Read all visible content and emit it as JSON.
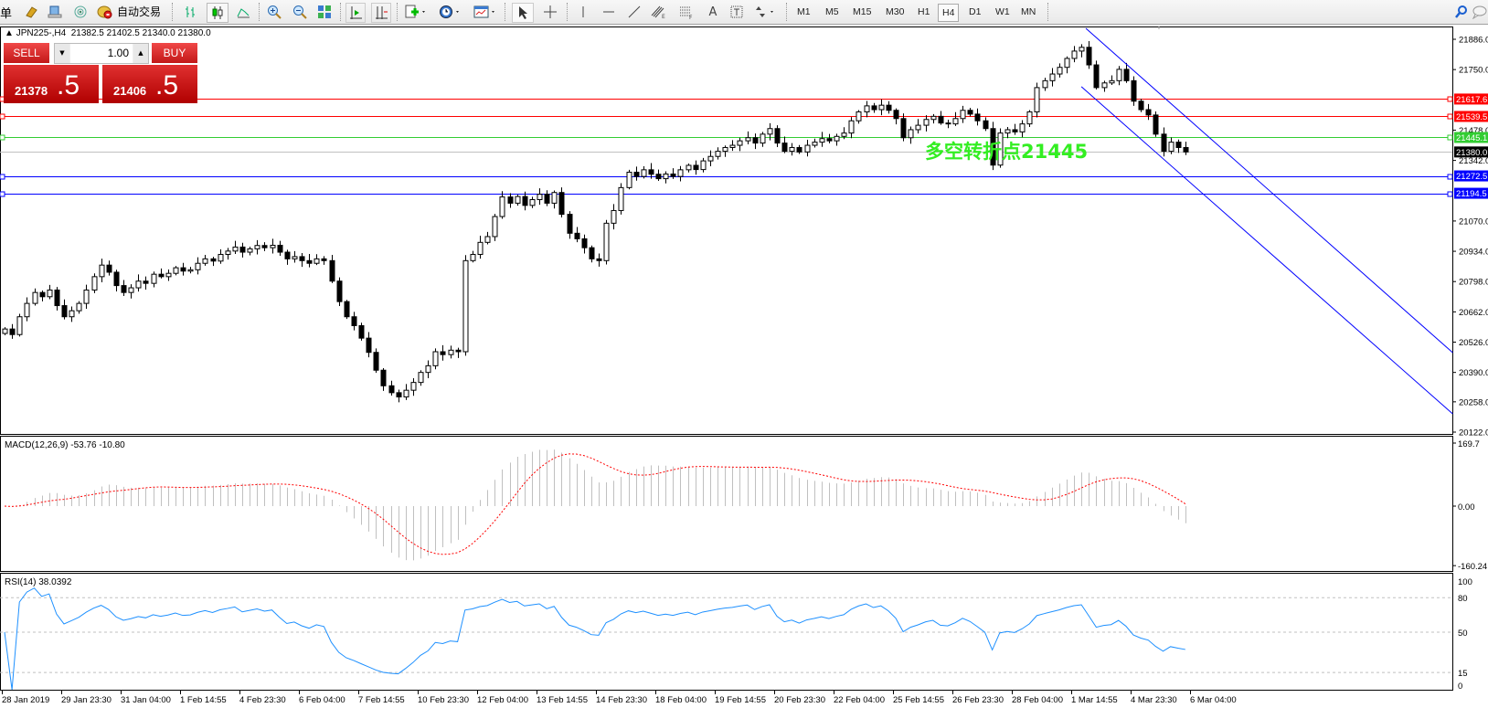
{
  "toolbar": {
    "cut_label": "单",
    "auto_trading_label": "自动交易",
    "timeframes": [
      "M1",
      "M5",
      "M15",
      "M30",
      "H1",
      "H4",
      "D1",
      "W1",
      "MN"
    ],
    "active_timeframe": "H4",
    "icons": [
      "orders-icon",
      "profile-icon",
      "market-watch-icon",
      "signals-icon",
      "auto-trading-icon",
      "bar-chart-icon",
      "candlestick-icon",
      "line-chart-icon",
      "zoom-in-icon",
      "zoom-out-icon",
      "tile-windows-icon",
      "autoscroll-icon",
      "chart-shift-icon",
      "indicators-icon",
      "periods-icon",
      "templates-icon",
      "cursor-icon",
      "crosshair-icon",
      "vertical-line-icon",
      "horizontal-line-icon",
      "trendline-icon",
      "equidistant-channel-icon",
      "fibonacci-icon",
      "text-icon",
      "text-label-icon",
      "arrows-icon",
      "search-icon",
      "chat-icon"
    ]
  },
  "header": {
    "symbol_text": "JPN225-,H4",
    "ohlc_text": "21382.5 21402.5 21340.0 21380.0"
  },
  "trade_panel": {
    "sell_label": "SELL",
    "buy_label": "BUY",
    "lot": "1.00",
    "sell_price_main": "21378",
    "sell_price_frac": ".5",
    "buy_price_main": "21406",
    "buy_price_frac": ".5"
  },
  "chart_data": {
    "type": "candlestick",
    "symbol": "JPN225-",
    "timeframe": "H4",
    "last_bar": {
      "open": 21382.5,
      "high": 21402.5,
      "low": 21340.0,
      "close": 21380.0
    },
    "price_axis": {
      "range": [
        20122,
        21886
      ],
      "ticks": [
        "21886.0",
        "21750.0",
        "21478.0",
        "21342.0",
        "21070.0",
        "20934.0",
        "20798.0",
        "20662.0",
        "20526.0",
        "20390.0",
        "20258.0",
        "20122.0"
      ]
    },
    "time_axis": {
      "labels": [
        "28 Jan 2019",
        "29 Jan 23:30",
        "31 Jan 04:00",
        "1 Feb 14:55",
        "4 Feb 23:30",
        "6 Feb 04:00",
        "7 Feb 14:55",
        "10 Feb 23:30",
        "12 Feb 04:00",
        "13 Feb 14:55",
        "14 Feb 23:30",
        "18 Feb 04:00",
        "19 Feb 14:55",
        "20 Feb 23:30",
        "22 Feb 04:00",
        "25 Feb 14:55",
        "26 Feb 23:30",
        "28 Feb 04:00",
        "1 Mar 14:55",
        "4 Mar 23:30",
        "6 Mar 04:00"
      ],
      "bars_per_label": 8
    },
    "closes": [
      20585,
      20560,
      20640,
      20700,
      20749,
      20730,
      20760,
      20690,
      20640,
      20667,
      20700,
      20760,
      20820,
      20872,
      20840,
      20780,
      20749,
      20770,
      20800,
      20790,
      20831,
      20820,
      20835,
      20860,
      20845,
      20851,
      20880,
      20900,
      20890,
      20920,
      20935,
      20953,
      20930,
      20945,
      20960,
      20950,
      20961,
      20930,
      20900,
      20910,
      20892,
      20880,
      20900,
      20892,
      20800,
      20708,
      20640,
      20600,
      20544,
      20480,
      20400,
      20330,
      20299,
      20280,
      20310,
      20345,
      20390,
      20420,
      20483,
      20470,
      20490,
      20483,
      20892,
      20920,
      20974,
      21000,
      21090,
      21178,
      21150,
      21180,
      21140,
      21166,
      21190,
      21150,
      21198,
      21100,
      21015,
      20990,
      20950,
      20900,
      20892,
      21060,
      21117,
      21220,
      21289,
      21270,
      21300,
      21280,
      21260,
      21281,
      21270,
      21300,
      21320,
      21301,
      21340,
      21360,
      21383,
      21400,
      21410,
      21430,
      21444,
      21420,
      21460,
      21485,
      21420,
      21383,
      21400,
      21380,
      21410,
      21424,
      21440,
      21430,
      21450,
      21465,
      21520,
      21560,
      21587,
      21570,
      21590,
      21567,
      21530,
      21444,
      21480,
      21500,
      21526,
      21540,
      21510,
      21506,
      21530,
      21567,
      21550,
      21520,
      21485,
      21321,
      21465,
      21480,
      21470,
      21506,
      21560,
      21669,
      21700,
      21730,
      21760,
      21800,
      21833,
      21850,
      21771,
      21669,
      21690,
      21700,
      21751,
      21700,
      21608,
      21570,
      21546,
      21460,
      21383,
      21424,
      21400,
      21380
    ],
    "hlines": [
      {
        "price": 21617.6,
        "label": "21617.6",
        "color": "#ff0000"
      },
      {
        "price": 21539.5,
        "label": "21539.5",
        "color": "#ff0000"
      },
      {
        "price": 21445.1,
        "label": "21445.1",
        "color": "#32cd32"
      },
      {
        "price": 21380.0,
        "label": "21380.0",
        "color": "#c0c0c0",
        "label_bg": "#000000",
        "kind": "bid"
      },
      {
        "price": 21272.5,
        "label": "21272.5",
        "color": "#0000ff"
      },
      {
        "price": 21194.5,
        "label": "21194.5",
        "color": "#0000ff"
      }
    ],
    "trendlines": [
      {
        "from": {
          "bar": 145.6,
          "price": 21935
        },
        "to": {
          "bar": 195,
          "price": 20479
        },
        "color": "#0000ff"
      },
      {
        "from": {
          "bar": 145,
          "price": 21673
        },
        "to": {
          "bar": 195,
          "price": 20204
        },
        "color": "#0000ff"
      }
    ],
    "annotation": {
      "text": "多空转折点21445",
      "color": "#33ee22"
    },
    "indicators": {
      "macd": {
        "label": "MACD(12,26,9) -53.76 -10.80",
        "fast": 12,
        "slow": 26,
        "signal": 9,
        "range": [
          -160.24,
          169.7
        ],
        "ticks": [
          {
            "v": 169.7,
            "t": "169.7"
          },
          {
            "v": 0,
            "t": "0.00"
          },
          {
            "v": -160.24,
            "t": "-160.24"
          }
        ],
        "histogram_color": "#c0c0c0",
        "signal_color": "#ff0000"
      },
      "rsi": {
        "label": "RSI(14) 38.0392",
        "period": 14,
        "range": [
          0,
          100
        ],
        "levels": [
          80,
          50,
          15
        ],
        "ticks": [
          {
            "v": 100,
            "t": "100"
          },
          {
            "v": 80,
            "t": "80"
          },
          {
            "v": 50,
            "t": "50"
          },
          {
            "v": 15,
            "t": "15"
          },
          {
            "v": 0,
            "t": "0"
          }
        ],
        "color": "#1e90ff"
      }
    },
    "grid": false,
    "colors": {
      "bull_body": "#ffffff",
      "bear_body": "#000000",
      "outline": "#000000",
      "background": "#ffffff"
    }
  }
}
